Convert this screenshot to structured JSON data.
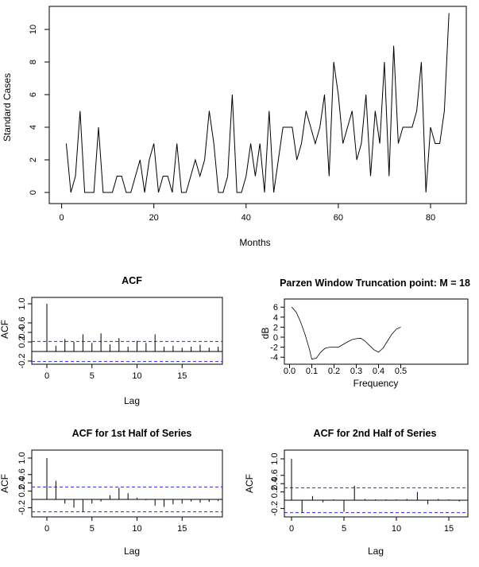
{
  "charts": {
    "main": {
      "type": "line",
      "title": "",
      "xlabel": "Months",
      "ylabel": "Standard Cases",
      "xlim": [
        1,
        84
      ],
      "ylim": [
        0,
        11
      ],
      "x_ticks": [
        "0",
        "20",
        "40",
        "60",
        "80"
      ],
      "y_ticks": [
        "0",
        "2",
        "4",
        "6",
        "8",
        "10"
      ]
    },
    "acf": {
      "title": "ACF",
      "xlabel": "Lag",
      "ylabel": "ACF",
      "x_ticks": [
        "0",
        "5",
        "10",
        "15"
      ],
      "y_ticks": [
        "-0.2",
        "0.2",
        "0.4",
        "0.6",
        "1.0"
      ]
    },
    "parzen": {
      "title": "Parzen Window Truncation point: M = 18",
      "xlabel": "Frequency",
      "ylabel": "dB",
      "x_ticks": [
        "0.0",
        "0.1",
        "0.2",
        "0.3",
        "0.4",
        "0.5"
      ],
      "y_ticks": [
        "-4",
        "-2",
        "0",
        "2",
        "4",
        "6"
      ]
    },
    "acf1": {
      "title": "ACF for 1st Half of Series",
      "xlabel": "Lag",
      "ylabel": "ACF",
      "x_ticks": [
        "0",
        "5",
        "10",
        "15"
      ],
      "y_ticks": [
        "-0.2",
        "0.2",
        "0.4",
        "0.6",
        "1.0"
      ]
    },
    "acf2": {
      "title": "ACF for 2nd Half of Series",
      "xlabel": "Lag",
      "ylabel": "ACF",
      "x_ticks": [
        "0",
        "5",
        "10",
        "15"
      ],
      "y_ticks": [
        "-0.2",
        "0.2",
        "0.4",
        "0.6",
        "1.0"
      ]
    }
  },
  "chart_data": [
    {
      "type": "line",
      "xlabel": "Months",
      "ylabel": "Standard Cases",
      "xlim": [
        1,
        84
      ],
      "ylim": [
        0,
        11
      ],
      "x": [
        1,
        2,
        3,
        4,
        5,
        6,
        7,
        8,
        9,
        10,
        11,
        12,
        13,
        14,
        15,
        16,
        17,
        18,
        19,
        20,
        21,
        22,
        23,
        24,
        25,
        26,
        27,
        28,
        29,
        30,
        31,
        32,
        33,
        34,
        35,
        36,
        37,
        38,
        39,
        40,
        41,
        42,
        43,
        44,
        45,
        46,
        47,
        48,
        49,
        50,
        51,
        52,
        53,
        54,
        55,
        56,
        57,
        58,
        59,
        60,
        61,
        62,
        63,
        64,
        65,
        66,
        67,
        68,
        69,
        70,
        71,
        72,
        73,
        74,
        75,
        76,
        77,
        78,
        79,
        80,
        81,
        82,
        83,
        84
      ],
      "values": [
        3,
        0,
        1,
        5,
        0,
        0,
        0,
        4,
        0,
        0,
        0,
        1,
        1,
        0,
        0,
        1,
        2,
        0,
        2,
        3,
        0,
        1,
        1,
        0,
        3,
        0,
        0,
        1,
        2,
        1,
        2,
        5,
        3,
        0,
        0,
        1,
        6,
        0,
        0,
        1,
        3,
        1,
        3,
        0,
        5,
        0,
        2,
        4,
        4,
        4,
        2,
        3,
        5,
        4,
        3,
        4,
        6,
        1,
        8,
        6,
        3,
        4,
        5,
        2,
        3,
        6,
        1,
        5,
        3,
        8,
        1,
        9,
        3,
        4,
        4,
        4,
        5,
        8,
        0,
        4,
        3,
        3,
        5,
        11
      ]
    },
    {
      "type": "bar",
      "title": "ACF",
      "xlabel": "Lag",
      "ylabel": "ACF",
      "x": [
        0,
        1,
        2,
        3,
        4,
        5,
        6,
        7,
        8,
        9,
        10,
        11,
        12,
        13,
        14,
        15,
        16,
        17,
        18,
        19
      ],
      "values": [
        1.0,
        0.12,
        0.26,
        0.2,
        0.36,
        0.18,
        0.38,
        0.15,
        0.28,
        0.1,
        0.22,
        0.18,
        0.36,
        0.1,
        0.12,
        0.08,
        0.1,
        0.14,
        0.08,
        0.1
      ],
      "confidence_band": 0.21
    },
    {
      "type": "line",
      "title": "Parzen Window Truncation point: M = 18",
      "xlabel": "Frequency",
      "ylabel": "dB",
      "xlim": [
        0.0,
        0.5
      ],
      "ylim": [
        -4.5,
        6.5
      ],
      "x": [
        0.01,
        0.03,
        0.05,
        0.07,
        0.09,
        0.1,
        0.12,
        0.14,
        0.16,
        0.18,
        0.2,
        0.22,
        0.25,
        0.28,
        0.3,
        0.32,
        0.34,
        0.36,
        0.38,
        0.4,
        0.42,
        0.44,
        0.46,
        0.48,
        0.5
      ],
      "values": [
        6.0,
        5.0,
        3.0,
        0.5,
        -2.5,
        -4.4,
        -4.2,
        -3.0,
        -2.2,
        -2.0,
        -2.0,
        -2.0,
        -1.2,
        -0.5,
        -0.3,
        -0.2,
        -0.8,
        -1.7,
        -2.5,
        -3.0,
        -2.2,
        -0.8,
        0.6,
        1.6,
        2.0
      ]
    },
    {
      "type": "bar",
      "title": "ACF for 1st Half of Series",
      "xlabel": "Lag",
      "ylabel": "ACF",
      "x": [
        0,
        1,
        2,
        3,
        4,
        5,
        6,
        7,
        8,
        9,
        10,
        11,
        12,
        13,
        14,
        15,
        16,
        17,
        18,
        19
      ],
      "values": [
        1.0,
        0.45,
        -0.1,
        -0.2,
        -0.3,
        -0.1,
        -0.05,
        0.1,
        0.28,
        0.15,
        0.04,
        -0.02,
        -0.15,
        -0.18,
        -0.12,
        -0.1,
        -0.05,
        -0.08,
        -0.06,
        -0.04
      ],
      "confidence_band": 0.3
    },
    {
      "type": "bar",
      "title": "ACF for 2nd Half of Series",
      "xlabel": "Lag",
      "ylabel": "ACF",
      "x": [
        0,
        1,
        2,
        3,
        4,
        5,
        6,
        7,
        8,
        9,
        10,
        11,
        12,
        13,
        14,
        15,
        16
      ],
      "values": [
        1.0,
        -0.3,
        0.1,
        -0.05,
        0.02,
        -0.28,
        0.35,
        0.03,
        0.02,
        0.02,
        0.02,
        0.03,
        0.2,
        -0.1,
        0.03,
        0.02,
        -0.03
      ],
      "confidence_band": 0.3
    }
  ]
}
